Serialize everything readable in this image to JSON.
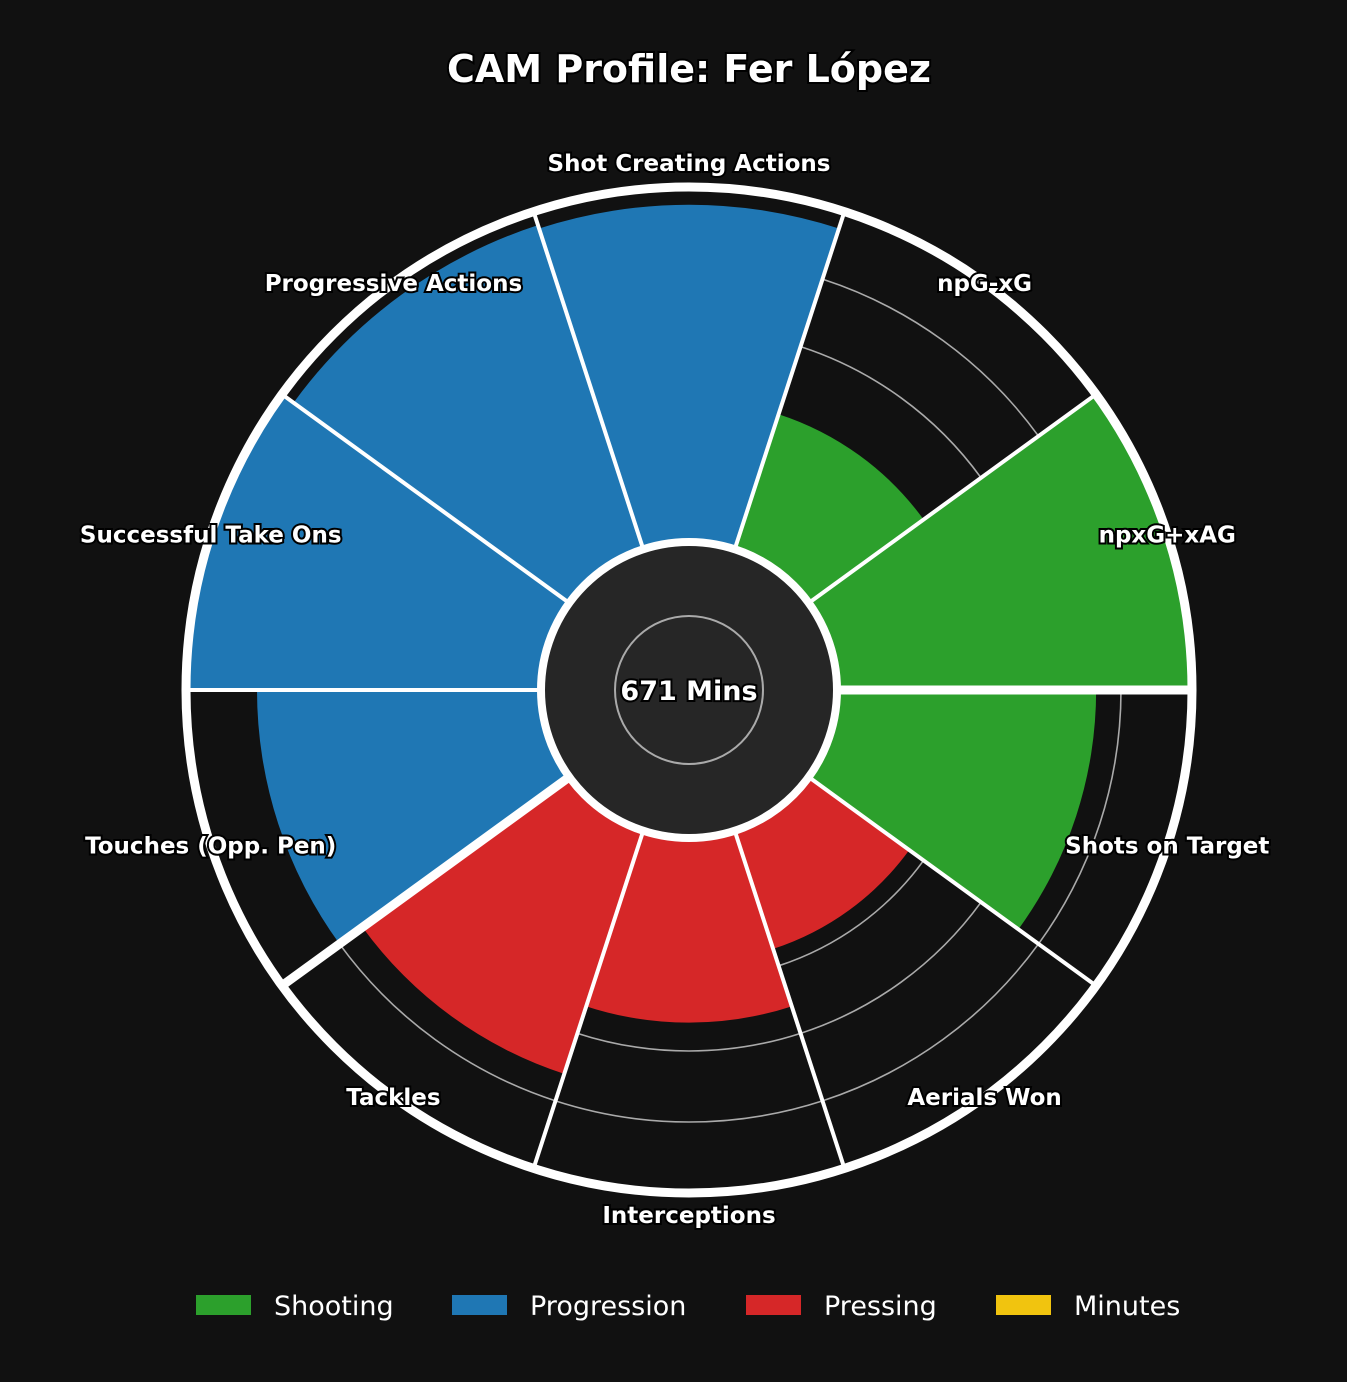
{
  "chart_data": {
    "type": "polar-bar",
    "title": "CAM Profile: Fer López",
    "center_label": "671 Mins",
    "metrics": [
      {
        "label": "npxG+xAG",
        "category": "Shooting",
        "value": 100
      },
      {
        "label": "npG-xG",
        "category": "Shooting",
        "value": 40
      },
      {
        "label": "Shot Creating Actions",
        "category": "Progression",
        "value": 95
      },
      {
        "label": "Progressive Actions",
        "category": "Progression",
        "value": 96
      },
      {
        "label": "Successful Take Ons",
        "category": "Progression",
        "value": 100
      },
      {
        "label": "Touches (Opp. Pen)",
        "category": "Progression",
        "value": 80
      },
      {
        "label": "Tackles",
        "category": "Pressing",
        "value": 72
      },
      {
        "label": "Interceptions",
        "category": "Pressing",
        "value": 52
      },
      {
        "label": "Aerials Won",
        "category": "Pressing",
        "value": 35
      },
      {
        "label": "Shots on Target",
        "category": "Shooting",
        "value": 73
      }
    ],
    "value_range": [
      0,
      100
    ],
    "gridline_values": [
      20,
      40,
      60,
      80,
      100
    ],
    "legend": {
      "placement": "bottom",
      "items": [
        {
          "label": "Shooting",
          "color": "#2ca02c"
        },
        {
          "label": "Progression",
          "color": "#1f77b4"
        },
        {
          "label": "Pressing",
          "color": "#d62728"
        },
        {
          "label": "Minutes",
          "color": "#f1c40f"
        }
      ]
    },
    "colors": {
      "background": "#111111",
      "center_disc": "#262626",
      "outline": "#ffffff",
      "grid": "#aaaaaa"
    }
  }
}
